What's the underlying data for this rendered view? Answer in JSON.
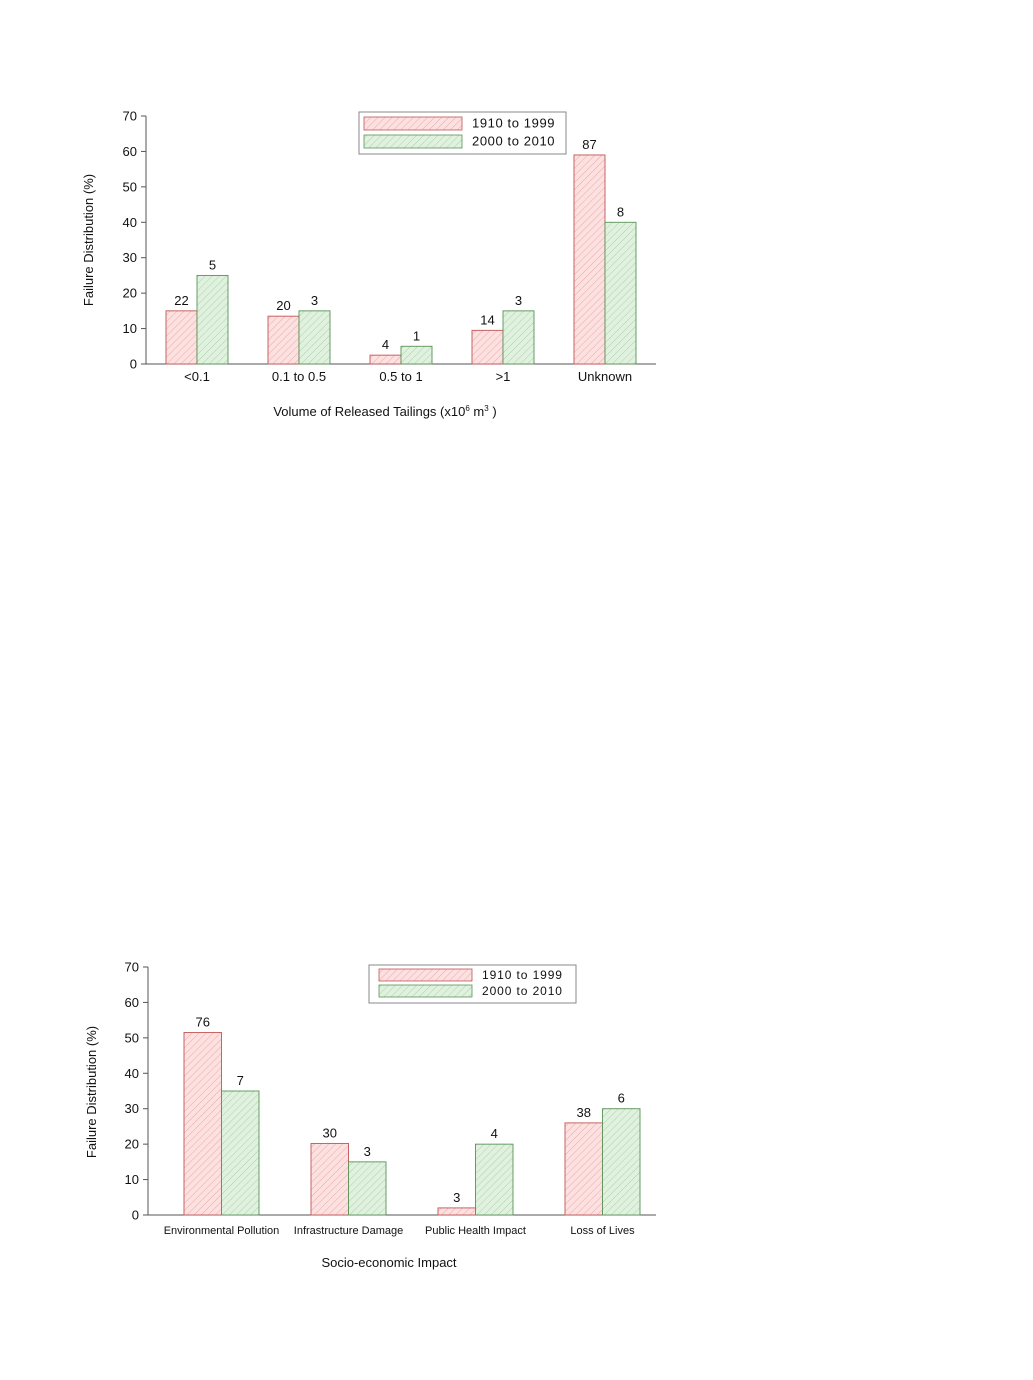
{
  "colors": {
    "series1_fill": "#fde0e0",
    "series1_stroke": "#c05656",
    "series2_fill": "#e0f2df",
    "series2_stroke": "#5a9257",
    "axis": "#555555"
  },
  "chart_data": [
    {
      "type": "bar",
      "categories": [
        "<0.1",
        "0.1 to 0.5",
        "0.5 to 1",
        ">1",
        "Unknown"
      ],
      "series": [
        {
          "name": "1910 to 1999",
          "values": [
            15,
            13.5,
            2.5,
            9.5,
            59
          ],
          "labels": [
            "22",
            "20",
            "4",
            "14",
            "87"
          ]
        },
        {
          "name": "2000 to 2010",
          "values": [
            25,
            15,
            5,
            15,
            40
          ],
          "labels": [
            "5",
            "3",
            "1",
            "3",
            "8"
          ]
        }
      ],
      "xlabel": "Volume of Released Tailings (x10",
      "xlabel_sup1": "6",
      "xlabel_mid": " m",
      "xlabel_sup2": "3",
      "xlabel_end": " )",
      "ylabel": "Failure Distribution (%)",
      "ylim": [
        0,
        70
      ],
      "yticks": [
        "0",
        "10",
        "20",
        "30",
        "40",
        "50",
        "60",
        "70"
      ],
      "grid": false,
      "legend": "top-right"
    },
    {
      "type": "bar",
      "categories": [
        "Environmental Pollution",
        "Infrastructure Damage",
        "Public Health Impact",
        "Loss of Lives"
      ],
      "series": [
        {
          "name": "1910 to 1999",
          "values": [
            51.5,
            20.2,
            2,
            26
          ],
          "labels": [
            "76",
            "30",
            "3",
            "38"
          ]
        },
        {
          "name": "2000 to 2010",
          "values": [
            35,
            15,
            20,
            30
          ],
          "labels": [
            "7",
            "3",
            "4",
            "6"
          ]
        }
      ],
      "xlabel": "Socio-economic Impact",
      "ylabel": "Failure Distribution (%)",
      "ylim": [
        0,
        70
      ],
      "yticks": [
        "0",
        "10",
        "20",
        "30",
        "40",
        "50",
        "60",
        "70"
      ],
      "grid": false,
      "legend": "top-right"
    }
  ]
}
